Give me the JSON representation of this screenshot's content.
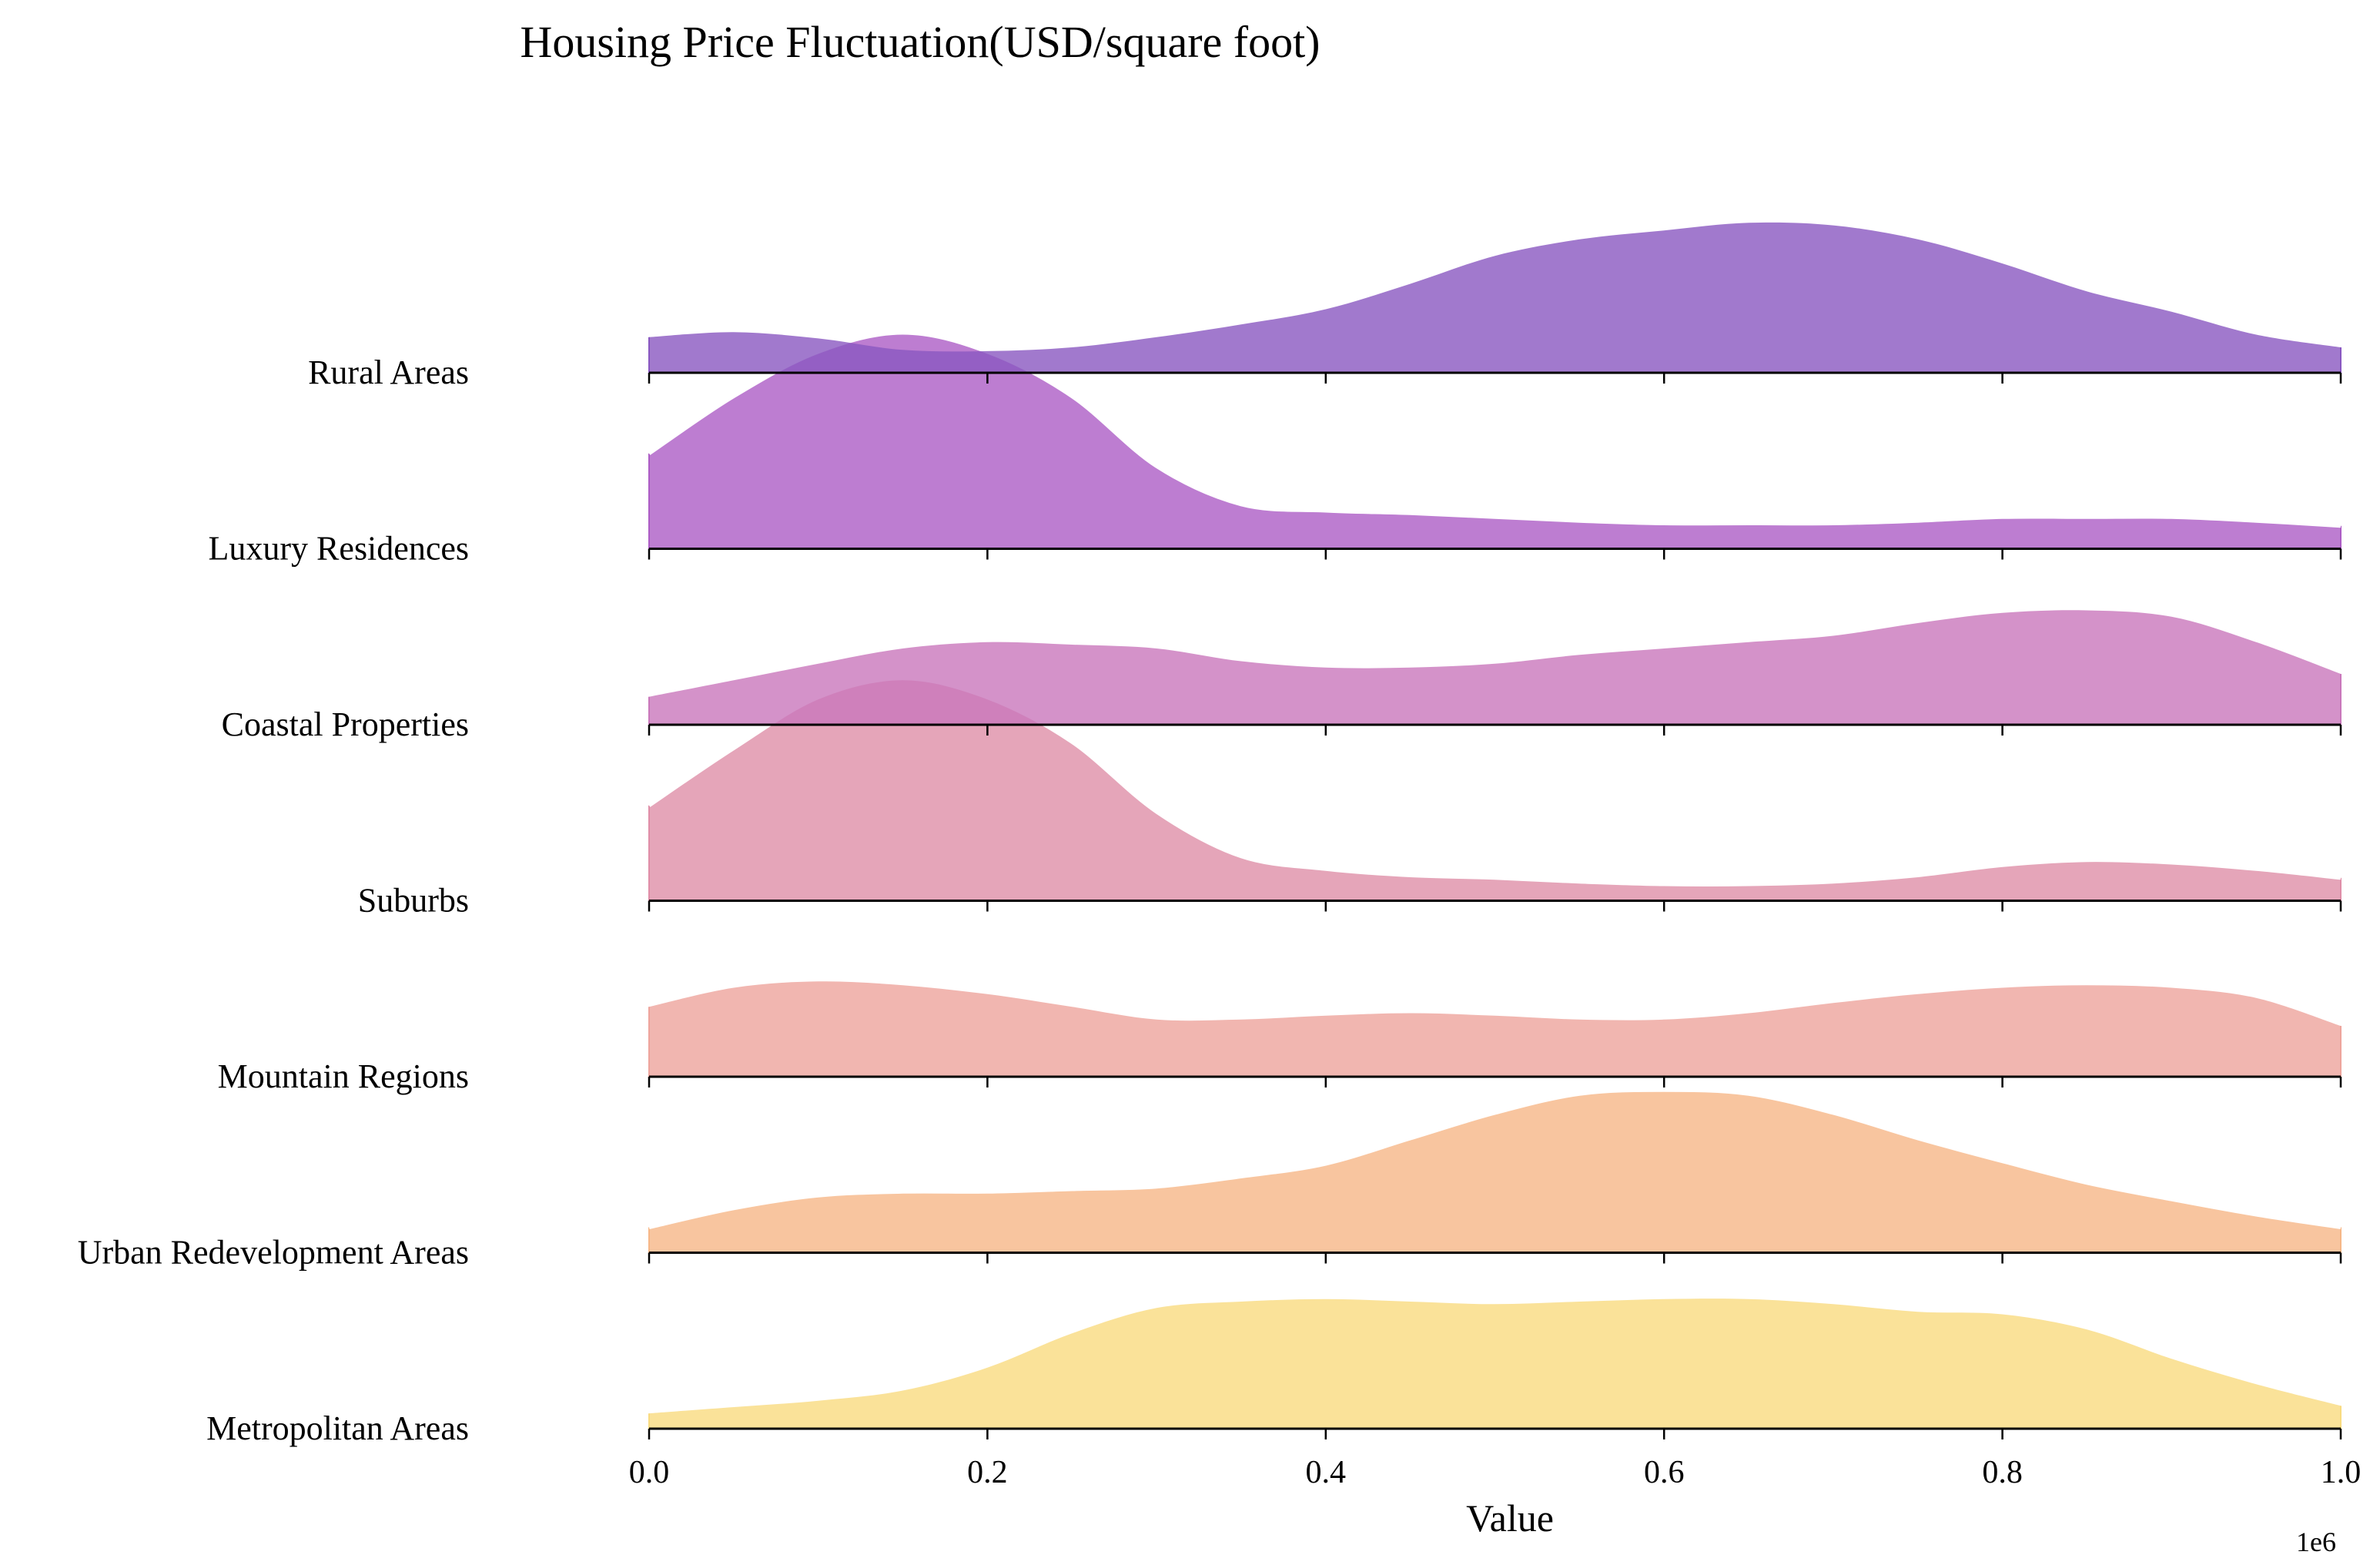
{
  "chart_data": {
    "type": "ridgeline",
    "title": "Housing Price Fluctuation(USD/square foot)",
    "xlabel": "Value",
    "x_offset_label": "1e6",
    "xlim": [
      0,
      1
    ],
    "x_ticks": [
      "0.0",
      "0.2",
      "0.4",
      "0.6",
      "0.8",
      "1.0"
    ],
    "x_tick_values": [
      0.0,
      0.2,
      0.4,
      0.6,
      0.8,
      1.0
    ],
    "grid": false,
    "legend": "none",
    "x": [
      0,
      0.05,
      0.1,
      0.15,
      0.2,
      0.25,
      0.3,
      0.35,
      0.4,
      0.45,
      0.5,
      0.55,
      0.6,
      0.65,
      0.7,
      0.75,
      0.8,
      0.85,
      0.9,
      0.95,
      1.0
    ],
    "highlight_stroke": "#ffffff",
    "series": [
      {
        "name": "Rural Areas",
        "color": "#8957c1",
        "highlight": false,
        "values": [
          0.28,
          0.32,
          0.27,
          0.18,
          0.17,
          0.2,
          0.28,
          0.38,
          0.5,
          0.7,
          0.92,
          1.05,
          1.12,
          1.18,
          1.16,
          1.05,
          0.86,
          0.64,
          0.48,
          0.3,
          0.2
        ]
      },
      {
        "name": "Luxury Residences",
        "color": "#ad5cc5",
        "highlight": true,
        "values": [
          0.75,
          1.2,
          1.55,
          1.7,
          1.55,
          1.2,
          0.65,
          0.35,
          0.3,
          0.28,
          0.25,
          0.22,
          0.2,
          0.2,
          0.2,
          0.22,
          0.25,
          0.25,
          0.25,
          0.22,
          0.18
        ]
      },
      {
        "name": "Coastal Properties",
        "color": "#c977bb",
        "highlight": false,
        "values": [
          0.22,
          0.35,
          0.48,
          0.6,
          0.65,
          0.63,
          0.6,
          0.5,
          0.45,
          0.45,
          0.48,
          0.55,
          0.6,
          0.65,
          0.7,
          0.8,
          0.88,
          0.9,
          0.85,
          0.65,
          0.4
        ]
      },
      {
        "name": "Suburbs",
        "color": "#df8ea8",
        "highlight": true,
        "values": [
          0.75,
          1.2,
          1.6,
          1.75,
          1.6,
          1.25,
          0.7,
          0.35,
          0.25,
          0.2,
          0.18,
          0.15,
          0.13,
          0.13,
          0.15,
          0.2,
          0.28,
          0.32,
          0.3,
          0.25,
          0.18
        ]
      },
      {
        "name": "Mountain Regions",
        "color": "#eea49c",
        "highlight": false,
        "values": [
          0.55,
          0.7,
          0.75,
          0.72,
          0.65,
          0.55,
          0.45,
          0.45,
          0.48,
          0.5,
          0.48,
          0.45,
          0.45,
          0.5,
          0.58,
          0.65,
          0.7,
          0.72,
          0.7,
          0.62,
          0.4
        ]
      },
      {
        "name": "Urban Redevelopment Areas",
        "color": "#f6b787",
        "highlight": true,
        "values": [
          0.2,
          0.35,
          0.45,
          0.48,
          0.48,
          0.5,
          0.52,
          0.6,
          0.7,
          0.9,
          1.1,
          1.25,
          1.28,
          1.25,
          1.1,
          0.9,
          0.72,
          0.55,
          0.42,
          0.3,
          0.2
        ]
      },
      {
        "name": "Metropolitan Areas",
        "color": "#f9db80",
        "highlight": false,
        "values": [
          0.12,
          0.17,
          0.22,
          0.3,
          0.48,
          0.75,
          0.95,
          1.0,
          1.02,
          1.0,
          0.98,
          1.0,
          1.02,
          1.02,
          0.98,
          0.92,
          0.9,
          0.78,
          0.55,
          0.35,
          0.18
        ]
      }
    ]
  }
}
